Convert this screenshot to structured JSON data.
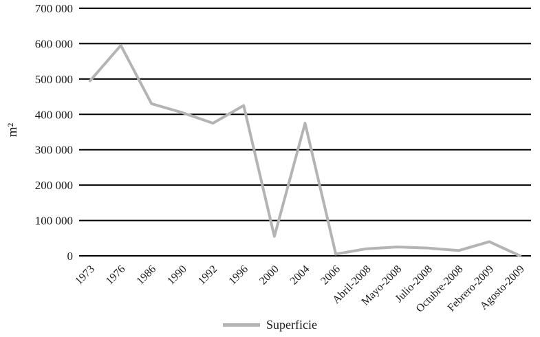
{
  "chart_data": {
    "type": "line",
    "title": "",
    "ylabel": "m²",
    "xlabel": "",
    "ylim": [
      0,
      700000
    ],
    "ytick_step": 100000,
    "ytick_labels": [
      "0",
      "100 000",
      "200 000",
      "300 000",
      "400 000",
      "500 000",
      "600 000",
      "700 000"
    ],
    "categories": [
      "1973",
      "1976",
      "1986",
      "1990",
      "1992",
      "1996",
      "2000",
      "2004",
      "2006",
      "Abril-2008",
      "Mayo-2008",
      "Julio-2008",
      "Octubre-2008",
      "Febrero-2009",
      "Agosto-2009"
    ],
    "series": [
      {
        "name": "Superficie",
        "color": "#b4b4b4",
        "values": [
          495000,
          595000,
          430000,
          405000,
          375000,
          425000,
          55000,
          375000,
          5000,
          20000,
          25000,
          22000,
          15000,
          40000,
          0
        ]
      }
    ],
    "legend_position": "bottom",
    "grid": true,
    "grid_color": "#000000",
    "axis_color": "#000000"
  }
}
